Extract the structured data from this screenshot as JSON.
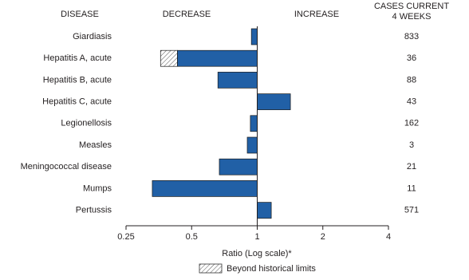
{
  "chart_data": {
    "type": "bar",
    "orientation": "horizontal",
    "disease_header": "DISEASE",
    "decrease_label": "DECREASE",
    "increase_label": "INCREASE",
    "cases_header": [
      "CASES CURRENT",
      "4 WEEKS"
    ],
    "categories": [
      "Giardiasis",
      "Hepatitis A, acute",
      "Hepatitis B, acute",
      "Hepatitis C, acute",
      "Legionellosis",
      "Measles",
      "Meningococcal disease",
      "Mumps",
      "Pertussis"
    ],
    "values": [
      0.94,
      0.36,
      0.66,
      1.42,
      0.93,
      0.9,
      0.67,
      0.33,
      1.16
    ],
    "beyond_limits": [
      null,
      0.43,
      null,
      null,
      null,
      null,
      null,
      null,
      null
    ],
    "cases": [
      833,
      36,
      88,
      43,
      162,
      3,
      21,
      11,
      571
    ],
    "color": "#2160a6",
    "xscale": "log",
    "xlim": [
      0.25,
      4
    ],
    "xticks": [
      0.25,
      0.5,
      1,
      2,
      4
    ],
    "baseline": 1,
    "xlabel": "Ratio (Log scale)*",
    "legend_label": "Beyond historical limits"
  }
}
